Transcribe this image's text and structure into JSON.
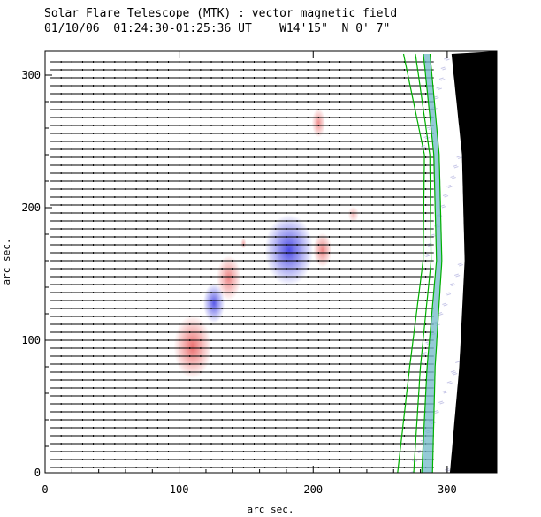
{
  "chart_data": {
    "type": "scatter",
    "title": "Solar Flare Telescope (MTK) : vector magnetic field",
    "subtitle": "01/10/06  01:24:30-01:25:36 UT    W14'15\"  N 0' 7\"",
    "xlabel": "arc sec.",
    "ylabel": "arc sec.",
    "xlim": [
      0,
      337
    ],
    "ylim": [
      0,
      318
    ],
    "xticks": [
      0,
      100,
      200,
      300
    ],
    "yticks": [
      0,
      100,
      200,
      300
    ],
    "grid": false,
    "colors": {
      "positive": "#e02020",
      "negative": "#2020e0",
      "limb_disk": "#000000",
      "contour": "#00b000",
      "limb_band": "#70b8c8",
      "vectors": "#000000"
    },
    "positive_polarity": [
      {
        "x": 110,
        "y": 95,
        "rx": 14,
        "ry": 24,
        "strength": 0.65
      },
      {
        "x": 137,
        "y": 147,
        "rx": 9,
        "ry": 17,
        "strength": 0.55
      },
      {
        "x": 207,
        "y": 168,
        "rx": 7,
        "ry": 13,
        "strength": 0.55
      },
      {
        "x": 204,
        "y": 264,
        "rx": 5,
        "ry": 11,
        "strength": 0.5
      },
      {
        "x": 230,
        "y": 195,
        "rx": 4,
        "ry": 6,
        "strength": 0.3
      },
      {
        "x": 148,
        "y": 173,
        "rx": 2,
        "ry": 4,
        "strength": 0.4
      }
    ],
    "negative_polarity": [
      {
        "x": 182,
        "y": 168,
        "rx": 18,
        "ry": 27,
        "strength": 0.8
      },
      {
        "x": 126,
        "y": 128,
        "rx": 8,
        "ry": 15,
        "strength": 0.75
      }
    ],
    "limb_x_at": [
      {
        "y": 0,
        "x": 302
      },
      {
        "y": 80,
        "x": 309
      },
      {
        "y": 160,
        "x": 313
      },
      {
        "y": 240,
        "x": 311
      },
      {
        "y": 318,
        "x": 303
      }
    ],
    "contours": [
      [
        {
          "y": 0,
          "x": 263
        },
        {
          "y": 80,
          "x": 272
        },
        {
          "y": 160,
          "x": 282
        },
        {
          "y": 240,
          "x": 283
        },
        {
          "y": 318,
          "x": 267
        }
      ],
      [
        {
          "y": 0,
          "x": 275
        },
        {
          "y": 80,
          "x": 280
        },
        {
          "y": 160,
          "x": 288
        },
        {
          "y": 240,
          "x": 287
        },
        {
          "y": 318,
          "x": 276
        }
      ],
      [
        {
          "y": 0,
          "x": 281
        },
        {
          "y": 80,
          "x": 285
        },
        {
          "y": 160,
          "x": 292
        },
        {
          "y": 240,
          "x": 290
        },
        {
          "y": 318,
          "x": 282
        }
      ],
      [
        {
          "y": 0,
          "x": 289
        },
        {
          "y": 80,
          "x": 291
        },
        {
          "y": 160,
          "x": 296
        },
        {
          "y": 240,
          "x": 294
        },
        {
          "y": 318,
          "x": 287
        }
      ]
    ],
    "vector_rows": {
      "y_start": 4,
      "y_step": 6,
      "count": 52,
      "x_start": 4,
      "x_end": 290
    }
  }
}
